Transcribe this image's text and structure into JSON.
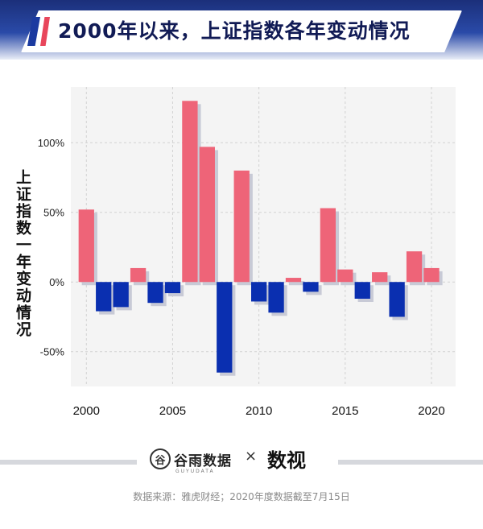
{
  "header": {
    "title": "2000年以来，上证指数各年变动情况"
  },
  "axis": {
    "ylabel": "上证指数一年变动情况"
  },
  "chart_data": {
    "type": "bar",
    "title": "2000年以来，上证指数各年变动情况",
    "xlabel": "",
    "ylabel": "上证指数一年变动情况",
    "x": [
      2000,
      2001,
      2002,
      2003,
      2004,
      2005,
      2006,
      2007,
      2008,
      2009,
      2010,
      2011,
      2012,
      2013,
      2014,
      2015,
      2016,
      2017,
      2018,
      2019,
      2020
    ],
    "values": [
      52,
      -21,
      -18,
      10,
      -15,
      -8,
      130,
      97,
      -65,
      80,
      -14,
      -22,
      3,
      -7,
      53,
      9,
      -12,
      7,
      -25,
      22,
      10
    ],
    "x_ticks": [
      2000,
      2005,
      2010,
      2015,
      2020
    ],
    "x_tick_labels": [
      "2000",
      "2005",
      "2010",
      "2015",
      "2020"
    ],
    "y_ticks": [
      100,
      50,
      0,
      -50
    ],
    "y_tick_labels": [
      "100%",
      "50%",
      "0%",
      "-50%"
    ],
    "ylim": [
      -75,
      140
    ],
    "xlim": [
      1999.1,
      2021.4
    ],
    "grid": true,
    "colors": {
      "positive": "#ee6478",
      "negative": "#0a2fb0",
      "shadow": "#c8cad6",
      "grid": "#d2d2d2",
      "panel": "#f4f4f4"
    }
  },
  "footer": {
    "brand_left_mark": "谷",
    "brand_left": "谷雨数据",
    "brand_left_sub": "GUYUDATA",
    "brand_sep": "×",
    "brand_right": "数视",
    "source": "数据来源：雅虎财经；2020年度数据截至7月15日"
  }
}
